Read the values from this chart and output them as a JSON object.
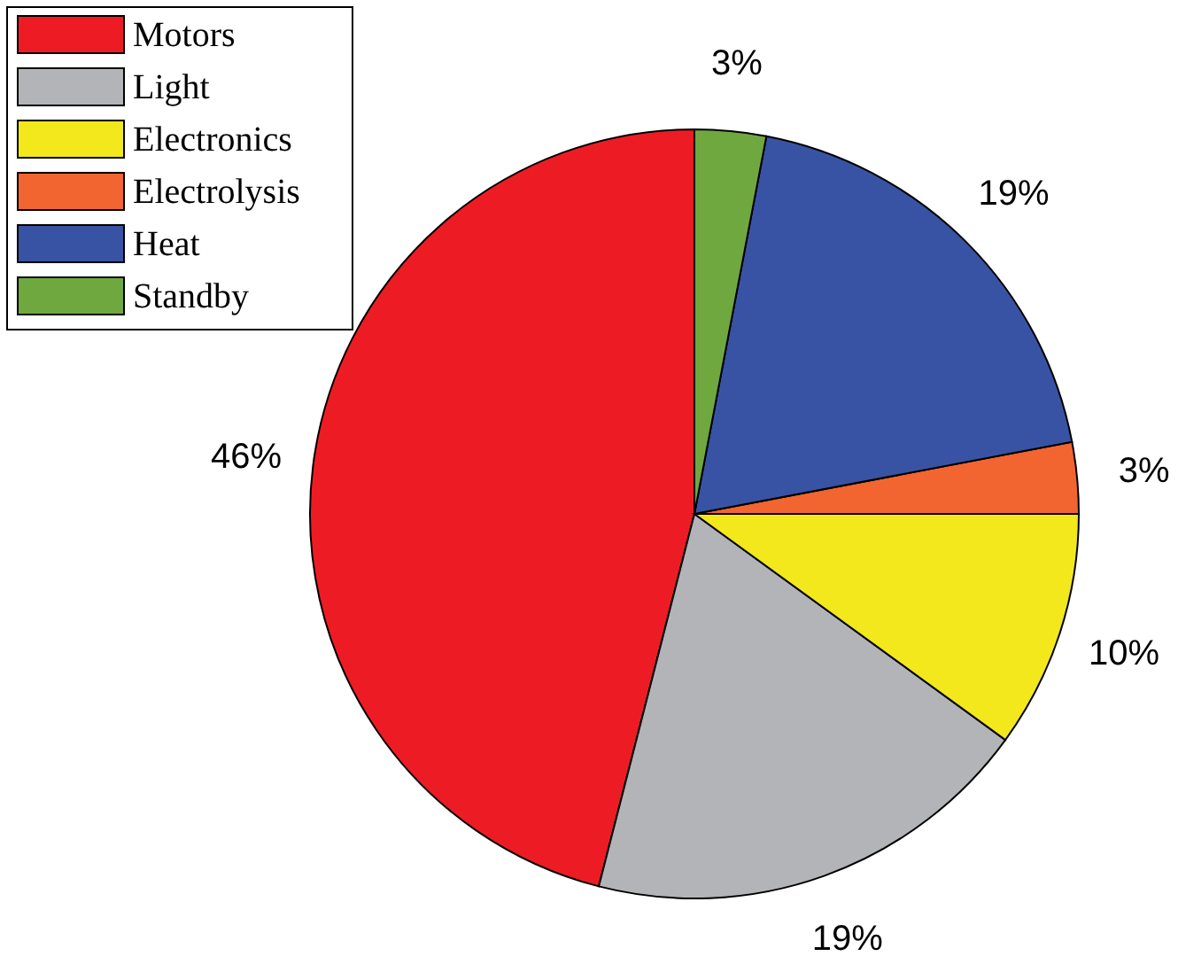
{
  "chart_data": {
    "type": "pie",
    "categories": [
      "Motors",
      "Light",
      "Electronics",
      "Electrolysis",
      "Heat",
      "Standby"
    ],
    "values": [
      46,
      19,
      10,
      3,
      19,
      3
    ],
    "colors": [
      "#ed1c24",
      "#b3b4b8",
      "#f2e81c",
      "#f26430",
      "#3953a4",
      "#70a840"
    ],
    "value_labels": [
      "46%",
      "19%",
      "10%",
      "3%",
      "19%",
      "3%"
    ],
    "legend": "top left"
  }
}
